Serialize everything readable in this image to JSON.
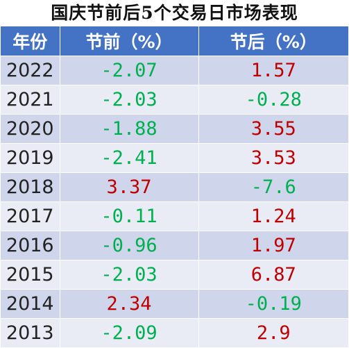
{
  "title": "国庆节前后5个交易日市场表现",
  "headers": {
    "year": "年份",
    "pre": "节前（%）",
    "post": "节后（%）"
  },
  "colors": {
    "header_bg": "#4472c4",
    "row_odd": "#cfd5ea",
    "row_even": "#e9ebf5",
    "negative": "#00b050",
    "positive": "#c00000"
  },
  "rows": [
    {
      "year": "2022",
      "pre": "-2.07",
      "post": "1.57"
    },
    {
      "year": "2021",
      "pre": "-2.03",
      "post": "-0.28"
    },
    {
      "year": "2020",
      "pre": "-1.88",
      "post": "3.55"
    },
    {
      "year": "2019",
      "pre": "-2.41",
      "post": "3.53"
    },
    {
      "year": "2018",
      "pre": "3.37",
      "post": "-7.6"
    },
    {
      "year": "2017",
      "pre": "-0.11",
      "post": "1.24"
    },
    {
      "year": "2016",
      "pre": "-0.96",
      "post": "1.97"
    },
    {
      "year": "2015",
      "pre": "-2.03",
      "post": "6.87"
    },
    {
      "year": "2014",
      "pre": "2.34",
      "post": "-0.19"
    },
    {
      "year": "2013",
      "pre": "-2.09",
      "post": "2.9"
    }
  ]
}
